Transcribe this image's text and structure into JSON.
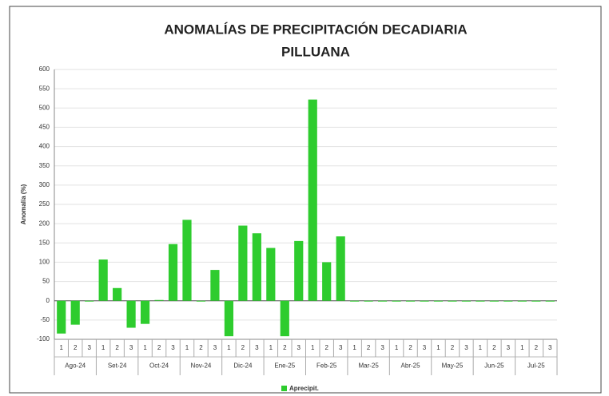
{
  "chart_data": {
    "type": "bar",
    "title": "ANOMALÍAS DE PRECIPITACIÓN DECADIARIA",
    "subtitle": "PILLUANA",
    "y_label": "Anomalía (%)",
    "categories": [
      "1",
      "2",
      "3",
      "1",
      "2",
      "3",
      "1",
      "2",
      "3",
      "1",
      "2",
      "3",
      "1",
      "2",
      "3",
      "1",
      "2",
      "3",
      "1",
      "2",
      "3",
      "1",
      "2",
      "3",
      "1",
      "2",
      "3",
      "1",
      "2",
      "3",
      "1",
      "2",
      "3",
      "1",
      "2",
      "3"
    ],
    "groups": [
      "Ago-24",
      "Set-24",
      "Oct-24",
      "Nov-24",
      "Dic-24",
      "Ene-25",
      "Feb-25",
      "Mar-25",
      "Abr-25",
      "May-25",
      "Jun-25",
      "Jul-25"
    ],
    "series": [
      {
        "name": "Aprecipit.",
        "color": "#2ecc2e",
        "values": [
          -85,
          -62,
          0,
          107,
          33,
          -70,
          -60,
          2,
          147,
          210,
          0,
          80,
          -92,
          195,
          175,
          137,
          -92,
          155,
          522,
          100,
          167,
          0,
          0,
          0,
          0,
          0,
          0,
          0,
          0,
          0,
          0,
          0,
          0,
          0,
          0,
          0
        ]
      }
    ],
    "ylim": [
      -100,
      600
    ],
    "yticks": [
      -100,
      -50,
      0,
      50,
      100,
      150,
      200,
      250,
      300,
      350,
      400,
      450,
      500,
      550,
      600
    ],
    "grid": true,
    "legend": "bottom"
  }
}
